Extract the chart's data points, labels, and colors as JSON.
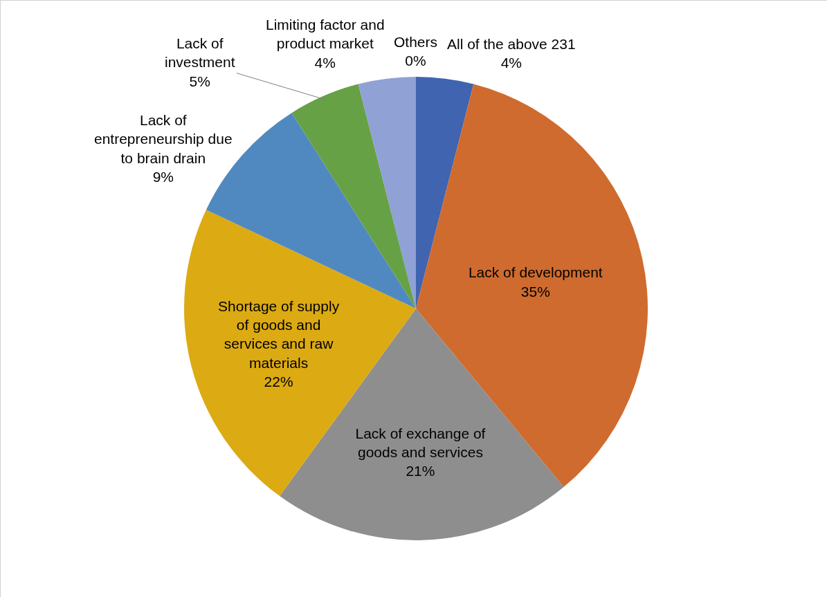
{
  "chart_data": {
    "type": "pie",
    "categories": [
      "All of the above 231",
      "Lack of development",
      "Lack of exchange of goods and services",
      "Shortage of supply of goods and services and raw materials",
      "Lack of entrepreneurship due to brain drain",
      "Lack of investment",
      "Limiting factor and product market",
      "Others"
    ],
    "values": [
      4,
      35,
      21,
      22,
      9,
      5,
      4,
      0
    ],
    "value_labels": [
      "4%",
      "35%",
      "21%",
      "22%",
      "9%",
      "5%",
      "4%",
      "0%"
    ],
    "colors": [
      "#4064b0",
      "#cf6b2e",
      "#8e8e8e",
      "#dcaa12",
      "#5089c0",
      "#67a146",
      "#8fa1d5",
      "#e99d86"
    ],
    "legend": false
  }
}
